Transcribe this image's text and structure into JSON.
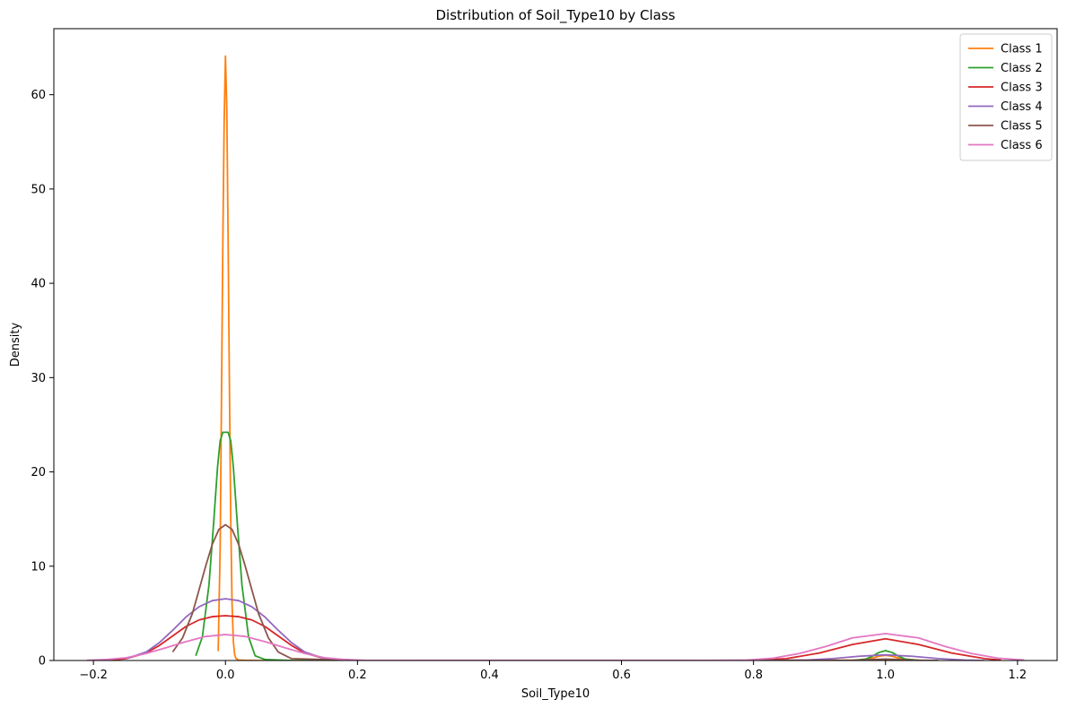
{
  "chart_data": {
    "type": "line",
    "title": "Distribution of Soil_Type10 by Class",
    "xlabel": "Soil_Type10",
    "ylabel": "Density",
    "xlim": [
      -0.26,
      1.26
    ],
    "ylim": [
      0,
      67
    ],
    "x_ticks": [
      -0.2,
      0.0,
      0.2,
      0.4,
      0.6,
      0.8,
      1.0,
      1.2
    ],
    "x_tick_labels": [
      "−0.2",
      "0.0",
      "0.2",
      "0.4",
      "0.6",
      "0.8",
      "1.0",
      "1.2"
    ],
    "y_ticks": [
      0,
      10,
      20,
      30,
      40,
      50,
      60
    ],
    "y_tick_labels": [
      "0",
      "10",
      "20",
      "30",
      "40",
      "50",
      "60"
    ],
    "grid": false,
    "legend_position": "top-right",
    "series": [
      {
        "name": "Class 1",
        "color": "#ff7f0e",
        "x": [
          -0.011,
          -0.008,
          -0.006,
          -0.004,
          -0.002,
          0.0,
          0.002,
          0.004,
          0.006,
          0.008,
          0.01,
          0.012,
          0.014,
          0.016,
          0.02,
          0.03,
          0.05,
          0.1,
          0.2,
          0.4,
          0.6,
          0.8,
          0.96,
          0.98,
          0.99,
          1.0,
          1.01,
          1.02,
          1.04,
          1.07
        ],
        "y": [
          1.0,
          12.0,
          28.0,
          44.0,
          57.0,
          64.1,
          58.5,
          45.0,
          29.0,
          15.0,
          6.0,
          2.0,
          0.6,
          0.2,
          0.05,
          0.02,
          0.0,
          0.0,
          0.0,
          0.0,
          0.0,
          0.0,
          0.05,
          0.25,
          0.45,
          0.55,
          0.45,
          0.25,
          0.05,
          0.0
        ]
      },
      {
        "name": "Class 2",
        "color": "#2ca02c",
        "x": [
          -0.045,
          -0.035,
          -0.025,
          -0.018,
          -0.012,
          -0.008,
          -0.004,
          0.0,
          0.004,
          0.008,
          0.012,
          0.018,
          0.025,
          0.035,
          0.045,
          0.06,
          0.1,
          0.2,
          0.4,
          0.6,
          0.8,
          0.95,
          0.97,
          0.98,
          0.99,
          1.0,
          1.01,
          1.02,
          1.03,
          1.05,
          1.08
        ],
        "y": [
          0.5,
          2.5,
          8.0,
          14.5,
          20.5,
          23.3,
          24.2,
          24.2,
          24.2,
          23.3,
          20.5,
          14.5,
          8.0,
          2.5,
          0.5,
          0.1,
          0.0,
          0.0,
          0.0,
          0.0,
          0.0,
          0.0,
          0.15,
          0.45,
          0.85,
          1.05,
          0.85,
          0.45,
          0.15,
          0.02,
          0.0
        ]
      },
      {
        "name": "Class 3",
        "color": "#d62728",
        "x": [
          -0.175,
          -0.15,
          -0.12,
          -0.1,
          -0.08,
          -0.06,
          -0.04,
          -0.02,
          0.0,
          0.02,
          0.04,
          0.06,
          0.08,
          0.1,
          0.12,
          0.15,
          0.2,
          0.4,
          0.6,
          0.8,
          0.85,
          0.9,
          0.95,
          1.0,
          1.05,
          1.1,
          1.15,
          1.175
        ],
        "y": [
          0.05,
          0.2,
          0.8,
          1.6,
          2.6,
          3.6,
          4.3,
          4.65,
          4.75,
          4.65,
          4.3,
          3.6,
          2.6,
          1.6,
          0.8,
          0.2,
          0.02,
          0.0,
          0.0,
          0.02,
          0.2,
          0.8,
          1.7,
          2.3,
          1.7,
          0.8,
          0.2,
          0.05
        ]
      },
      {
        "name": "Class 4",
        "color": "#9467bd",
        "x": [
          -0.15,
          -0.12,
          -0.1,
          -0.08,
          -0.06,
          -0.04,
          -0.02,
          0.0,
          0.02,
          0.04,
          0.06,
          0.08,
          0.1,
          0.12,
          0.15,
          0.2,
          0.4,
          0.6,
          0.8,
          0.88,
          0.92,
          0.96,
          1.0,
          1.04,
          1.08,
          1.12,
          1.15
        ],
        "y": [
          0.2,
          0.9,
          1.9,
          3.2,
          4.6,
          5.7,
          6.35,
          6.55,
          6.35,
          5.7,
          4.6,
          3.2,
          1.9,
          0.9,
          0.2,
          0.02,
          0.0,
          0.0,
          0.0,
          0.05,
          0.2,
          0.45,
          0.6,
          0.45,
          0.2,
          0.05,
          0.0
        ]
      },
      {
        "name": "Class 5",
        "color": "#8c564b",
        "x": [
          -0.08,
          -0.065,
          -0.05,
          -0.04,
          -0.03,
          -0.02,
          -0.01,
          0.0,
          0.01,
          0.02,
          0.03,
          0.04,
          0.05,
          0.065,
          0.08,
          0.1,
          0.2,
          0.4,
          0.6,
          0.8,
          0.95,
          0.98,
          1.0,
          1.02,
          1.05,
          1.08
        ],
        "y": [
          0.9,
          2.4,
          5.0,
          7.5,
          10.0,
          12.3,
          13.9,
          14.4,
          13.9,
          12.3,
          10.0,
          7.5,
          5.0,
          2.4,
          0.9,
          0.2,
          0.0,
          0.0,
          0.0,
          0.0,
          0.02,
          0.1,
          0.15,
          0.1,
          0.02,
          0.0
        ]
      },
      {
        "name": "Class 6",
        "color": "#e377c2",
        "x": [
          -0.21,
          -0.18,
          -0.15,
          -0.12,
          -0.09,
          -0.06,
          -0.03,
          0.0,
          0.03,
          0.06,
          0.09,
          0.12,
          0.15,
          0.18,
          0.21,
          0.3,
          0.5,
          0.7,
          0.79,
          0.83,
          0.87,
          0.91,
          0.95,
          1.0,
          1.05,
          1.09,
          1.13,
          1.17,
          1.21
        ],
        "y": [
          0.02,
          0.1,
          0.3,
          0.75,
          1.35,
          2.0,
          2.55,
          2.75,
          2.55,
          2.0,
          1.35,
          0.75,
          0.3,
          0.1,
          0.02,
          0.0,
          0.0,
          0.0,
          0.05,
          0.25,
          0.75,
          1.5,
          2.4,
          2.85,
          2.4,
          1.5,
          0.75,
          0.25,
          0.05
        ]
      }
    ]
  }
}
